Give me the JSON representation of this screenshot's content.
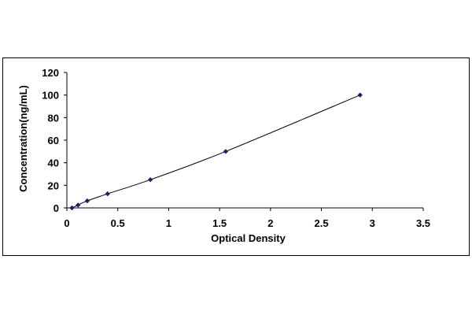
{
  "chart_data": {
    "type": "scatter",
    "title": "",
    "xlabel": "Optical Density",
    "ylabel": "Concentration(ng/mL)",
    "xlim": [
      0,
      3.5
    ],
    "ylim": [
      0,
      120
    ],
    "x_ticks": [
      "0",
      "0.5",
      "1",
      "1.5",
      "2",
      "2.5",
      "3",
      "3.5"
    ],
    "y_ticks": [
      "0",
      "20",
      "40",
      "60",
      "80",
      "100",
      "120"
    ],
    "grid": false,
    "legend": "none",
    "trendline": "smooth curve through points",
    "series": [
      {
        "x": [
          0.05,
          0.11,
          0.2,
          0.4,
          0.82,
          1.56,
          2.88
        ],
        "y": [
          0,
          2.5,
          6.25,
          12.5,
          25,
          50,
          100
        ]
      }
    ],
    "colors": {
      "marker": "#1f1f6e",
      "line": "#000000",
      "axis": "#000000"
    }
  }
}
